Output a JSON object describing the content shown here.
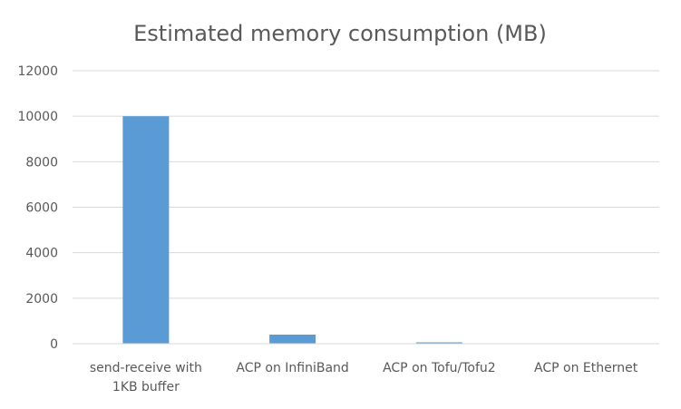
{
  "chart_data": {
    "type": "bar",
    "title": "Estimated memory consumption (MB)",
    "xlabel": "",
    "ylabel": "",
    "categories": [
      "send-receive with 1KB buffer",
      "ACP on InfiniBand",
      "ACP on Tofu/Tofu2",
      "ACP on Ethernet"
    ],
    "category_lines": [
      [
        "send-receive with",
        "1KB buffer"
      ],
      [
        "ACP on InfiniBand"
      ],
      [
        "ACP on Tofu/Tofu2"
      ],
      [
        "ACP on Ethernet"
      ]
    ],
    "values": [
      10000,
      400,
      60,
      3
    ],
    "ylim": [
      0,
      12000
    ],
    "yticks": [
      0,
      2000,
      4000,
      6000,
      8000,
      10000,
      12000
    ],
    "ytick_labels": [
      "0",
      "2000",
      "4000",
      "6000",
      "8000",
      "10000",
      "12000"
    ],
    "grid": true,
    "legend": "none",
    "bar_color": "#5B9BD5",
    "grid_color": "#D9D9D9",
    "text_color": "#595959"
  }
}
